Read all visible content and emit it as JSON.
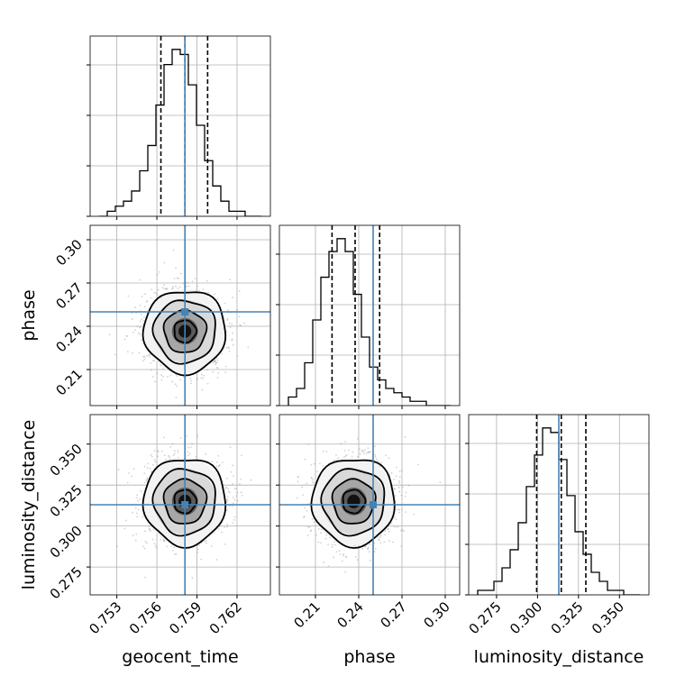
{
  "chart_data": {
    "type": "corner",
    "parameters": [
      "geocent_time",
      "phase",
      "luminosity_distance"
    ],
    "axis_labels": [
      "geocent_time",
      "phase",
      "luminosity_distance"
    ],
    "ranges": [
      [
        0.751,
        0.7645
      ],
      [
        0.185,
        0.31
      ],
      [
        0.258,
        0.368
      ]
    ],
    "ticks": [
      [
        "0.753",
        "0.756",
        "0.759",
        "0.762"
      ],
      [
        "0.21",
        "0.24",
        "0.27",
        "0.30"
      ],
      [
        "0.275",
        "0.300",
        "0.325",
        "0.350"
      ]
    ],
    "truths": [
      0.7581,
      0.25,
      0.313
    ],
    "quantiles": [
      [
        0.7563,
        0.7581,
        0.7598
      ],
      [
        0.2215,
        0.2375,
        0.2545
      ],
      [
        0.2995,
        0.3145,
        0.3295
      ]
    ],
    "histograms": [
      [
        0,
        1,
        2,
        3,
        5,
        9,
        14,
        22,
        30,
        33,
        32,
        26,
        18,
        11,
        6,
        3,
        1,
        1,
        0,
        0
      ],
      [
        2,
        4,
        10,
        20,
        30,
        36,
        39,
        36,
        26,
        16,
        9,
        6,
        4,
        3,
        2,
        1,
        1,
        0,
        0,
        0
      ],
      [
        1,
        1,
        3,
        6,
        10,
        16,
        24,
        31,
        37,
        36,
        30,
        22,
        14,
        9,
        5,
        3,
        1,
        1,
        0,
        0
      ]
    ],
    "means": [
      0.7581,
      0.2365,
      0.315
    ],
    "stds": [
      0.0015,
      0.014,
      0.013
    ],
    "correlations": {
      "1_0": 0.0,
      "2_0": 0.0,
      "2_1": 0.0
    },
    "colors": {
      "truth": "#4682b4",
      "hist": "#000000",
      "grid": "#b0b0b0"
    },
    "grid": true
  }
}
